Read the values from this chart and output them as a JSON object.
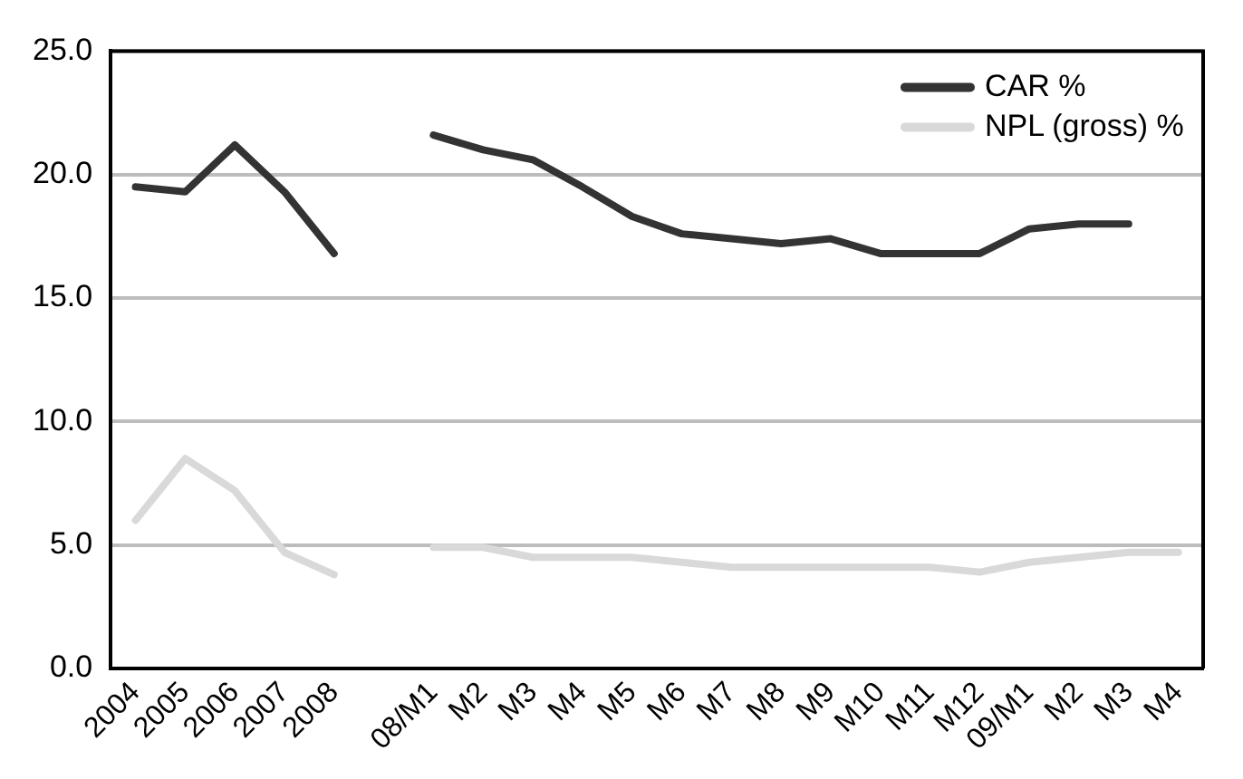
{
  "chart_data": {
    "type": "line",
    "categories": [
      "2004",
      "2005",
      "2006",
      "2007",
      "2008",
      null,
      "08/M1",
      "M2",
      "M3",
      "M4",
      "M5",
      "M6",
      "M7",
      "M8",
      "M9",
      "M10",
      "M11",
      "M12",
      "09/M1",
      "M2",
      "M3",
      "M4"
    ],
    "series": [
      {
        "name": "CAR %",
        "color": "#333333",
        "values": [
          19.5,
          19.3,
          21.2,
          19.3,
          16.8,
          null,
          21.6,
          21.0,
          20.6,
          19.5,
          18.3,
          17.6,
          17.4,
          17.2,
          17.4,
          16.8,
          16.8,
          16.8,
          17.8,
          18.0,
          18.0,
          null
        ]
      },
      {
        "name": "NPL (gross) %",
        "color": "#d9d9d9",
        "values": [
          6.0,
          8.5,
          7.2,
          4.7,
          3.8,
          null,
          4.9,
          4.9,
          4.5,
          4.5,
          4.5,
          4.3,
          4.1,
          4.1,
          4.1,
          4.1,
          4.1,
          3.9,
          4.3,
          4.5,
          4.7,
          4.7
        ]
      }
    ],
    "ylim": [
      0,
      25
    ],
    "yticks": [
      {
        "value": 0,
        "label": "0.0"
      },
      {
        "value": 5,
        "label": "5.0"
      },
      {
        "value": 10,
        "label": "10.0"
      },
      {
        "value": 15,
        "label": "15.0"
      },
      {
        "value": 20,
        "label": "20.0"
      },
      {
        "value": 25,
        "label": "25.0"
      }
    ],
    "grid": "y",
    "legend": "top right",
    "marker": "none",
    "line_style": "solid"
  }
}
